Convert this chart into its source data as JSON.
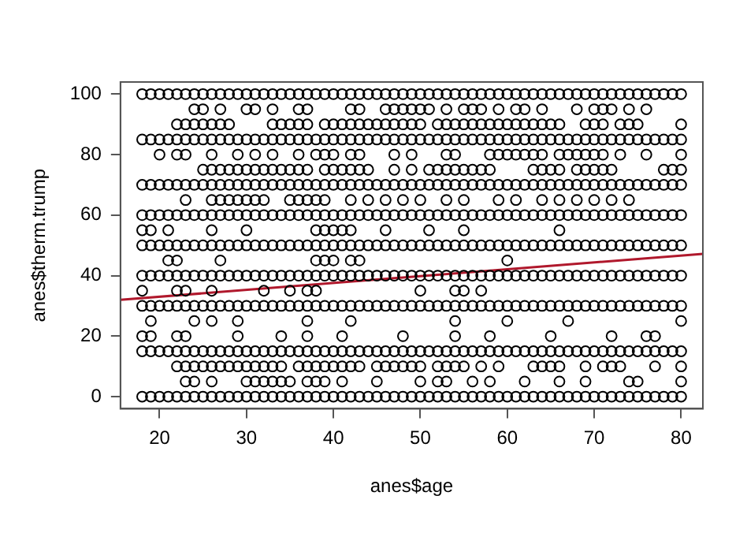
{
  "chart_data": {
    "type": "scatter",
    "xlabel": "anes$age",
    "ylabel": "anes$therm.trump",
    "xlim": [
      15.5,
      82.5
    ],
    "ylim": [
      -4,
      104
    ],
    "xticks": [
      20,
      30,
      40,
      50,
      60,
      70,
      80
    ],
    "yticks": [
      0,
      20,
      40,
      60,
      80,
      100
    ],
    "grid": false,
    "legend": false,
    "marker": "circle",
    "series": [
      {
        "type": "scatter",
        "color": "#000000",
        "x": [
          18,
          19,
          20,
          21,
          22,
          23,
          24,
          25,
          26,
          27,
          28,
          29,
          30,
          31,
          32,
          33,
          34,
          35,
          36,
          37,
          38,
          39,
          40,
          41,
          42,
          43,
          44,
          45,
          46,
          47,
          48,
          49,
          50,
          51,
          52,
          53,
          54,
          55,
          56,
          57,
          58,
          59,
          60,
          61,
          62,
          63,
          64,
          65,
          66,
          67,
          68,
          69,
          70,
          71,
          72,
          73,
          74,
          75,
          76,
          77,
          78,
          79,
          80
        ],
        "values": [
          100,
          100,
          100,
          100,
          100,
          100,
          100,
          100,
          100,
          100,
          100,
          100,
          100,
          100,
          100,
          100,
          100,
          100,
          100,
          100,
          100,
          100,
          100,
          100,
          100,
          100,
          100,
          100,
          100,
          100,
          100,
          100,
          100,
          100,
          100,
          100,
          100,
          100,
          100,
          100,
          100,
          100,
          100,
          100,
          100,
          100,
          100,
          100,
          100,
          100,
          100,
          100,
          100,
          100,
          100,
          100,
          100,
          100,
          100,
          100,
          100,
          100,
          100
        ]
      },
      {
        "type": "scatter",
        "color": "#000000",
        "x": [
          24,
          25,
          27,
          30,
          31,
          33,
          36,
          37,
          42,
          43,
          46,
          47,
          48,
          49,
          50,
          51,
          53,
          55,
          56,
          57,
          59,
          61,
          62,
          64,
          68,
          70,
          71,
          72,
          74,
          76
        ],
        "values": [
          95,
          95,
          95,
          95,
          95,
          95,
          95,
          95,
          95,
          95,
          95,
          95,
          95,
          95,
          95,
          95,
          95,
          95,
          95,
          95,
          95,
          95,
          95,
          95,
          95,
          95,
          95,
          95,
          95,
          95
        ]
      },
      {
        "type": "scatter",
        "color": "#000000",
        "x": [
          22,
          23,
          24,
          25,
          26,
          27,
          28,
          33,
          34,
          35,
          36,
          37,
          39,
          40,
          41,
          42,
          43,
          44,
          45,
          46,
          47,
          48,
          49,
          50,
          52,
          53,
          54,
          55,
          56,
          57,
          58,
          59,
          60,
          61,
          62,
          63,
          64,
          65,
          66,
          69,
          70,
          71,
          73,
          74,
          75,
          80
        ],
        "values": [
          90,
          90,
          90,
          90,
          90,
          90,
          90,
          90,
          90,
          90,
          90,
          90,
          90,
          90,
          90,
          90,
          90,
          90,
          90,
          90,
          90,
          90,
          90,
          90,
          90,
          90,
          90,
          90,
          90,
          90,
          90,
          90,
          90,
          90,
          90,
          90,
          90,
          90,
          90,
          90,
          90,
          90,
          90,
          90,
          90,
          90
        ]
      },
      {
        "type": "scatter",
        "color": "#000000",
        "x": [
          18,
          19,
          20,
          21,
          22,
          23,
          24,
          25,
          26,
          27,
          28,
          29,
          30,
          31,
          32,
          33,
          34,
          35,
          36,
          37,
          38,
          39,
          40,
          41,
          42,
          43,
          44,
          45,
          46,
          47,
          48,
          49,
          50,
          51,
          52,
          53,
          54,
          55,
          56,
          57,
          58,
          59,
          60,
          61,
          62,
          63,
          64,
          65,
          66,
          67,
          68,
          69,
          70,
          71,
          72,
          73,
          74,
          75,
          76,
          77,
          78,
          79,
          80
        ],
        "values": [
          85,
          85,
          85,
          85,
          85,
          85,
          85,
          85,
          85,
          85,
          85,
          85,
          85,
          85,
          85,
          85,
          85,
          85,
          85,
          85,
          85,
          85,
          85,
          85,
          85,
          85,
          85,
          85,
          85,
          85,
          85,
          85,
          85,
          85,
          85,
          85,
          85,
          85,
          85,
          85,
          85,
          85,
          85,
          85,
          85,
          85,
          85,
          85,
          85,
          85,
          85,
          85,
          85,
          85,
          85,
          85,
          85,
          85,
          85,
          85,
          85,
          85,
          85
        ]
      },
      {
        "type": "scatter",
        "color": "#000000",
        "x": [
          20,
          22,
          23,
          26,
          29,
          31,
          33,
          36,
          38,
          39,
          40,
          42,
          43,
          47,
          49,
          53,
          54,
          58,
          59,
          60,
          61,
          62,
          63,
          64,
          66,
          67,
          68,
          69,
          70,
          71,
          73,
          76,
          80
        ],
        "values": [
          80,
          80,
          80,
          80,
          80,
          80,
          80,
          80,
          80,
          80,
          80,
          80,
          80,
          80,
          80,
          80,
          80,
          80,
          80,
          80,
          80,
          80,
          80,
          80,
          80,
          80,
          80,
          80,
          80,
          80,
          80,
          80,
          80
        ]
      },
      {
        "type": "scatter",
        "color": "#000000",
        "x": [
          25,
          26,
          27,
          28,
          29,
          30,
          31,
          32,
          33,
          34,
          35,
          36,
          37,
          39,
          40,
          41,
          42,
          43,
          44,
          47,
          49,
          51,
          52,
          53,
          54,
          55,
          56,
          57,
          58,
          63,
          64,
          65,
          66,
          68,
          69,
          70,
          71,
          72,
          78,
          79,
          80
        ],
        "values": [
          75,
          75,
          75,
          75,
          75,
          75,
          75,
          75,
          75,
          75,
          75,
          75,
          75,
          75,
          75,
          75,
          75,
          75,
          75,
          75,
          75,
          75,
          75,
          75,
          75,
          75,
          75,
          75,
          75,
          75,
          75,
          75,
          75,
          75,
          75,
          75,
          75,
          75,
          75,
          75,
          75
        ]
      },
      {
        "type": "scatter",
        "color": "#000000",
        "x": [
          18,
          19,
          20,
          21,
          22,
          23,
          24,
          25,
          26,
          27,
          28,
          29,
          30,
          31,
          32,
          33,
          34,
          35,
          36,
          37,
          38,
          39,
          40,
          41,
          42,
          43,
          44,
          45,
          46,
          47,
          48,
          49,
          50,
          51,
          52,
          53,
          54,
          55,
          56,
          57,
          58,
          59,
          60,
          61,
          62,
          63,
          64,
          65,
          66,
          67,
          68,
          69,
          70,
          71,
          72,
          73,
          74,
          75,
          76,
          77,
          78,
          79,
          80
        ],
        "values": [
          70,
          70,
          70,
          70,
          70,
          70,
          70,
          70,
          70,
          70,
          70,
          70,
          70,
          70,
          70,
          70,
          70,
          70,
          70,
          70,
          70,
          70,
          70,
          70,
          70,
          70,
          70,
          70,
          70,
          70,
          70,
          70,
          70,
          70,
          70,
          70,
          70,
          70,
          70,
          70,
          70,
          70,
          70,
          70,
          70,
          70,
          70,
          70,
          70,
          70,
          70,
          70,
          70,
          70,
          70,
          70,
          70,
          70,
          70,
          70,
          70,
          70,
          70
        ]
      },
      {
        "type": "scatter",
        "color": "#000000",
        "x": [
          23,
          26,
          27,
          28,
          29,
          30,
          31,
          32,
          35,
          36,
          37,
          38,
          39,
          42,
          44,
          46,
          48,
          50,
          53,
          55,
          59,
          61,
          64,
          66,
          68,
          70,
          72,
          74
        ],
        "values": [
          65,
          65,
          65,
          65,
          65,
          65,
          65,
          65,
          65,
          65,
          65,
          65,
          65,
          65,
          65,
          65,
          65,
          65,
          65,
          65,
          65,
          65,
          65,
          65,
          65,
          65,
          65,
          65
        ]
      },
      {
        "type": "scatter",
        "color": "#000000",
        "x": [
          18,
          19,
          20,
          21,
          22,
          23,
          24,
          25,
          26,
          27,
          28,
          29,
          30,
          31,
          32,
          33,
          34,
          35,
          36,
          37,
          38,
          39,
          40,
          41,
          42,
          43,
          44,
          45,
          46,
          47,
          48,
          49,
          50,
          51,
          52,
          53,
          54,
          55,
          56,
          57,
          58,
          59,
          60,
          61,
          62,
          63,
          64,
          65,
          66,
          67,
          68,
          69,
          70,
          71,
          72,
          73,
          74,
          75,
          76,
          77,
          78,
          79,
          80
        ],
        "values": [
          60,
          60,
          60,
          60,
          60,
          60,
          60,
          60,
          60,
          60,
          60,
          60,
          60,
          60,
          60,
          60,
          60,
          60,
          60,
          60,
          60,
          60,
          60,
          60,
          60,
          60,
          60,
          60,
          60,
          60,
          60,
          60,
          60,
          60,
          60,
          60,
          60,
          60,
          60,
          60,
          60,
          60,
          60,
          60,
          60,
          60,
          60,
          60,
          60,
          60,
          60,
          60,
          60,
          60,
          60,
          60,
          60,
          60,
          60,
          60,
          60,
          60,
          60
        ]
      },
      {
        "type": "scatter",
        "color": "#000000",
        "x": [
          18,
          19,
          21,
          26,
          30,
          38,
          39,
          40,
          41,
          42,
          46,
          51,
          55,
          66
        ],
        "values": [
          55,
          55,
          55,
          55,
          55,
          55,
          55,
          55,
          55,
          55,
          55,
          55,
          55,
          55
        ]
      },
      {
        "type": "scatter",
        "color": "#000000",
        "x": [
          18,
          19,
          20,
          21,
          22,
          23,
          24,
          25,
          26,
          27,
          28,
          29,
          30,
          31,
          32,
          33,
          34,
          35,
          36,
          37,
          38,
          39,
          40,
          41,
          42,
          43,
          44,
          45,
          46,
          47,
          48,
          49,
          50,
          51,
          52,
          53,
          54,
          55,
          56,
          57,
          58,
          59,
          60,
          61,
          62,
          63,
          64,
          65,
          66,
          67,
          68,
          69,
          70,
          71,
          72,
          73,
          74,
          75,
          76,
          77,
          78,
          79,
          80
        ],
        "values": [
          50,
          50,
          50,
          50,
          50,
          50,
          50,
          50,
          50,
          50,
          50,
          50,
          50,
          50,
          50,
          50,
          50,
          50,
          50,
          50,
          50,
          50,
          50,
          50,
          50,
          50,
          50,
          50,
          50,
          50,
          50,
          50,
          50,
          50,
          50,
          50,
          50,
          50,
          50,
          50,
          50,
          50,
          50,
          50,
          50,
          50,
          50,
          50,
          50,
          50,
          50,
          50,
          50,
          50,
          50,
          50,
          50,
          50,
          50,
          50,
          50,
          50,
          50
        ]
      },
      {
        "type": "scatter",
        "color": "#000000",
        "x": [
          21,
          22,
          27,
          38,
          39,
          40,
          42,
          43,
          60
        ],
        "values": [
          45,
          45,
          45,
          45,
          45,
          45,
          45,
          45,
          45
        ]
      },
      {
        "type": "scatter",
        "color": "#000000",
        "x": [
          18,
          19,
          20,
          21,
          22,
          23,
          24,
          25,
          26,
          27,
          28,
          29,
          30,
          31,
          32,
          33,
          34,
          35,
          36,
          37,
          38,
          39,
          40,
          41,
          42,
          43,
          44,
          45,
          46,
          47,
          48,
          49,
          50,
          51,
          52,
          53,
          54,
          55,
          56,
          57,
          58,
          59,
          60,
          61,
          62,
          63,
          64,
          65,
          66,
          67,
          68,
          69,
          70,
          71,
          72,
          73,
          74,
          75,
          76,
          77,
          78,
          79,
          80
        ],
        "values": [
          40,
          40,
          40,
          40,
          40,
          40,
          40,
          40,
          40,
          40,
          40,
          40,
          40,
          40,
          40,
          40,
          40,
          40,
          40,
          40,
          40,
          40,
          40,
          40,
          40,
          40,
          40,
          40,
          40,
          40,
          40,
          40,
          40,
          40,
          40,
          40,
          40,
          40,
          40,
          40,
          40,
          40,
          40,
          40,
          40,
          40,
          40,
          40,
          40,
          40,
          40,
          40,
          40,
          40,
          40,
          40,
          40,
          40,
          40,
          40,
          40,
          40,
          40
        ]
      },
      {
        "type": "scatter",
        "color": "#000000",
        "x": [
          18,
          22,
          23,
          26,
          32,
          35,
          37,
          38,
          50,
          54,
          55,
          57
        ],
        "values": [
          35,
          35,
          35,
          35,
          35,
          35,
          35,
          35,
          35,
          35,
          35,
          35
        ]
      },
      {
        "type": "scatter",
        "color": "#000000",
        "x": [
          18,
          19,
          20,
          21,
          22,
          23,
          24,
          25,
          26,
          27,
          28,
          29,
          30,
          31,
          32,
          33,
          34,
          35,
          36,
          37,
          38,
          39,
          40,
          41,
          42,
          43,
          44,
          45,
          46,
          47,
          48,
          49,
          50,
          51,
          52,
          53,
          54,
          55,
          56,
          57,
          58,
          59,
          60,
          61,
          62,
          63,
          64,
          65,
          66,
          67,
          68,
          69,
          70,
          71,
          72,
          73,
          74,
          75,
          76,
          77,
          78,
          79,
          80
        ],
        "values": [
          30,
          30,
          30,
          30,
          30,
          30,
          30,
          30,
          30,
          30,
          30,
          30,
          30,
          30,
          30,
          30,
          30,
          30,
          30,
          30,
          30,
          30,
          30,
          30,
          30,
          30,
          30,
          30,
          30,
          30,
          30,
          30,
          30,
          30,
          30,
          30,
          30,
          30,
          30,
          30,
          30,
          30,
          30,
          30,
          30,
          30,
          30,
          30,
          30,
          30,
          30,
          30,
          30,
          30,
          30,
          30,
          30,
          30,
          30,
          30,
          30,
          30,
          30
        ]
      },
      {
        "type": "scatter",
        "color": "#000000",
        "x": [
          19,
          24,
          26,
          29,
          37,
          42,
          54,
          60,
          67,
          80
        ],
        "values": [
          25,
          25,
          25,
          25,
          25,
          25,
          25,
          25,
          25,
          25
        ]
      },
      {
        "type": "scatter",
        "color": "#000000",
        "x": [
          18,
          19,
          22,
          23,
          29,
          34,
          37,
          41,
          48,
          54,
          58,
          65,
          72,
          76,
          77
        ],
        "values": [
          20,
          20,
          20,
          20,
          20,
          20,
          20,
          20,
          20,
          20,
          20,
          20,
          20,
          20,
          20
        ]
      },
      {
        "type": "scatter",
        "color": "#000000",
        "x": [
          18,
          19,
          20,
          21,
          22,
          23,
          24,
          25,
          26,
          27,
          28,
          29,
          30,
          31,
          32,
          33,
          34,
          35,
          36,
          37,
          38,
          39,
          40,
          41,
          42,
          43,
          44,
          45,
          46,
          47,
          48,
          49,
          50,
          51,
          52,
          53,
          54,
          55,
          56,
          57,
          58,
          59,
          60,
          61,
          62,
          63,
          64,
          65,
          66,
          67,
          68,
          69,
          70,
          71,
          72,
          73,
          74,
          75,
          76,
          77,
          78,
          79,
          80
        ],
        "values": [
          15,
          15,
          15,
          15,
          15,
          15,
          15,
          15,
          15,
          15,
          15,
          15,
          15,
          15,
          15,
          15,
          15,
          15,
          15,
          15,
          15,
          15,
          15,
          15,
          15,
          15,
          15,
          15,
          15,
          15,
          15,
          15,
          15,
          15,
          15,
          15,
          15,
          15,
          15,
          15,
          15,
          15,
          15,
          15,
          15,
          15,
          15,
          15,
          15,
          15,
          15,
          15,
          15,
          15,
          15,
          15,
          15,
          15,
          15,
          15,
          15,
          15,
          15
        ]
      },
      {
        "type": "scatter",
        "color": "#000000",
        "x": [
          22,
          23,
          24,
          25,
          26,
          27,
          28,
          29,
          30,
          31,
          32,
          33,
          34,
          36,
          37,
          38,
          39,
          40,
          41,
          42,
          43,
          45,
          46,
          47,
          48,
          49,
          50,
          52,
          53,
          54,
          55,
          57,
          59,
          63,
          64,
          65,
          66,
          69,
          71,
          72,
          73,
          77,
          80
        ],
        "values": [
          10,
          10,
          10,
          10,
          10,
          10,
          10,
          10,
          10,
          10,
          10,
          10,
          10,
          10,
          10,
          10,
          10,
          10,
          10,
          10,
          10,
          10,
          10,
          10,
          10,
          10,
          10,
          10,
          10,
          10,
          10,
          10,
          10,
          10,
          10,
          10,
          10,
          10,
          10,
          10,
          10,
          10,
          10
        ]
      },
      {
        "type": "scatter",
        "color": "#000000",
        "x": [
          23,
          24,
          26,
          30,
          31,
          32,
          33,
          34,
          35,
          37,
          38,
          39,
          41,
          45,
          50,
          52,
          53,
          56,
          58,
          62,
          66,
          69,
          74,
          75,
          80
        ],
        "values": [
          5,
          5,
          5,
          5,
          5,
          5,
          5,
          5,
          5,
          5,
          5,
          5,
          5,
          5,
          5,
          5,
          5,
          5,
          5,
          5,
          5,
          5,
          5,
          5,
          5
        ]
      },
      {
        "type": "scatter",
        "color": "#000000",
        "x": [
          18,
          19,
          20,
          21,
          22,
          23,
          24,
          25,
          26,
          27,
          28,
          29,
          30,
          31,
          32,
          33,
          34,
          35,
          36,
          37,
          38,
          39,
          40,
          41,
          42,
          43,
          44,
          45,
          46,
          47,
          48,
          49,
          50,
          51,
          52,
          53,
          54,
          55,
          56,
          57,
          58,
          59,
          60,
          61,
          62,
          63,
          64,
          65,
          66,
          67,
          68,
          69,
          70,
          71,
          72,
          73,
          74,
          75,
          76,
          77,
          78,
          79,
          80
        ],
        "values": [
          0,
          0,
          0,
          0,
          0,
          0,
          0,
          0,
          0,
          0,
          0,
          0,
          0,
          0,
          0,
          0,
          0,
          0,
          0,
          0,
          0,
          0,
          0,
          0,
          0,
          0,
          0,
          0,
          0,
          0,
          0,
          0,
          0,
          0,
          0,
          0,
          0,
          0,
          0,
          0,
          0,
          0,
          0,
          0,
          0,
          0,
          0,
          0,
          0,
          0,
          0,
          0,
          0,
          0,
          0,
          0,
          0,
          0,
          0,
          0,
          0,
          0,
          0
        ]
      },
      {
        "type": "line",
        "color": "#b0182c",
        "marker": "none",
        "x": [
          15.5,
          82.5
        ],
        "values": [
          32,
          47.2
        ]
      }
    ]
  }
}
